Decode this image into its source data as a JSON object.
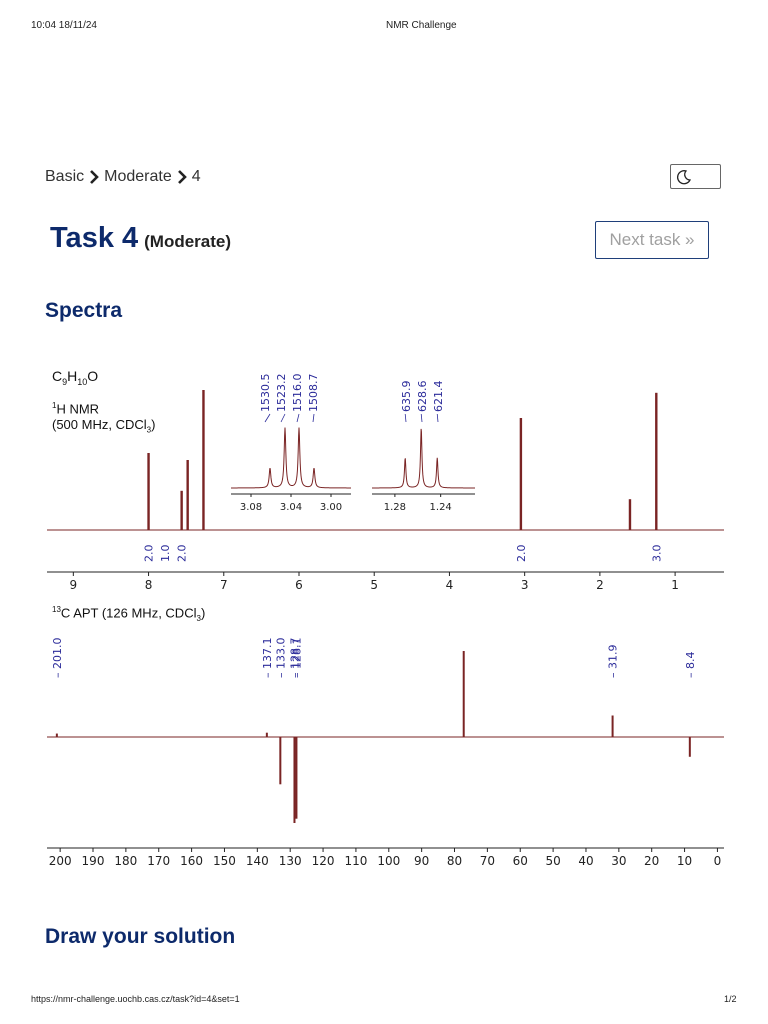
{
  "print_header": {
    "datetime": "10:04 18/11/24",
    "page_title": "NMR Challenge"
  },
  "breadcrumb": {
    "items": [
      "Basic",
      "Moderate",
      "4"
    ]
  },
  "theme_toggle": {
    "icon": "moon-icon"
  },
  "task": {
    "title": "Task 4",
    "difficulty": "(Moderate)",
    "next_label": "Next task »"
  },
  "sections": {
    "spectra": "Spectra",
    "solution": "Draw your solution"
  },
  "colors": {
    "heading": "#0d2a6b",
    "spectrum": "#7a2424",
    "peak_label": "#2b2b9a"
  },
  "h_nmr": {
    "formula": {
      "C": "C",
      "c_count": "9",
      "H": "H",
      "h_count": "10",
      "O": "O"
    },
    "nucleus_mass": "1",
    "label": "H NMR",
    "conditions_pre": "(500 MHz, CDCl",
    "conditions_sub": "3",
    "conditions_post": ")",
    "xlim": [
      9.35,
      0.35
    ],
    "ticks": [
      "9",
      "8",
      "7",
      "6",
      "5",
      "4",
      "3",
      "2",
      "1"
    ],
    "tick_values": [
      9,
      8,
      7,
      6,
      5,
      4,
      3,
      2,
      1
    ],
    "peaks": [
      {
        "shift": 8.0,
        "height": 0.55
      },
      {
        "shift": 7.56,
        "height": 0.28
      },
      {
        "shift": 7.48,
        "height": 0.5
      },
      {
        "shift": 7.27,
        "height": 1.0
      },
      {
        "shift": 3.05,
        "height": 0.8
      },
      {
        "shift": 1.6,
        "height": 0.22
      },
      {
        "shift": 1.25,
        "height": 0.98
      }
    ],
    "integrals": [
      {
        "shift": 8.0,
        "value": "2.0"
      },
      {
        "shift": 7.78,
        "value": "1.0"
      },
      {
        "shift": 7.56,
        "value": "2.0"
      },
      {
        "shift": 3.05,
        "value": "2.0"
      },
      {
        "shift": 1.25,
        "value": "3.0"
      }
    ],
    "inset_left": {
      "xlim": [
        3.1,
        2.98
      ],
      "ticks": [
        "3.08",
        "3.04",
        "3.00"
      ],
      "tick_values": [
        3.08,
        3.04,
        3.0
      ],
      "peak_labels": [
        "1530.5",
        "1523.2",
        "1516.0",
        "1508.7"
      ],
      "peaks": [
        {
          "shift": 3.061,
          "height": 0.33
        },
        {
          "shift": 3.046,
          "height": 1.0
        },
        {
          "shift": 3.032,
          "height": 1.0
        },
        {
          "shift": 3.017,
          "height": 0.33
        }
      ]
    },
    "inset_right": {
      "xlim": [
        1.3,
        1.21
      ],
      "ticks": [
        "1.28",
        "1.24"
      ],
      "tick_values": [
        1.28,
        1.24
      ],
      "peak_labels": [
        "635.9",
        "628.6",
        "621.4"
      ],
      "peaks": [
        {
          "shift": 1.271,
          "height": 0.5
        },
        {
          "shift": 1.257,
          "height": 1.0
        },
        {
          "shift": 1.243,
          "height": 0.5
        }
      ]
    }
  },
  "c_apt": {
    "nucleus_mass": "13",
    "label": "C APT (126 MHz, CDCl",
    "label_sub": "3",
    "label_post": ")",
    "xlim": [
      204,
      -2
    ],
    "ticks": [
      "200",
      "190",
      "180",
      "170",
      "160",
      "150",
      "140",
      "130",
      "120",
      "110",
      "100",
      "90",
      "80",
      "70",
      "60",
      "50",
      "40",
      "30",
      "20",
      "10",
      "0"
    ],
    "tick_values": [
      200,
      190,
      180,
      170,
      160,
      150,
      140,
      130,
      120,
      110,
      100,
      90,
      80,
      70,
      60,
      50,
      40,
      30,
      20,
      10,
      0
    ],
    "peak_labels": [
      {
        "text": "201.0",
        "shift": 201.0
      },
      {
        "text": "137.1",
        "shift": 137.1
      },
      {
        "text": "133.0",
        "shift": 133.0
      },
      {
        "text": "128.7",
        "shift": 128.7
      },
      {
        "text": "128.1",
        "shift": 128.1
      },
      {
        "text": "31.9",
        "shift": 31.9
      },
      {
        "text": "8.4",
        "shift": 8.4
      }
    ],
    "peaks": [
      {
        "shift": 201.0,
        "height": 0.04
      },
      {
        "shift": 137.1,
        "height": 0.05
      },
      {
        "shift": 133.0,
        "height": -0.55
      },
      {
        "shift": 128.7,
        "height": -1.0
      },
      {
        "shift": 128.1,
        "height": -0.95
      },
      {
        "shift": 77.2,
        "height": 1.0
      },
      {
        "shift": 31.9,
        "height": 0.25
      },
      {
        "shift": 8.4,
        "height": -0.23
      }
    ]
  },
  "footer": {
    "url": "https://nmr-challenge.uochb.cas.cz/task?id=4&set=1",
    "page": "1/2"
  }
}
